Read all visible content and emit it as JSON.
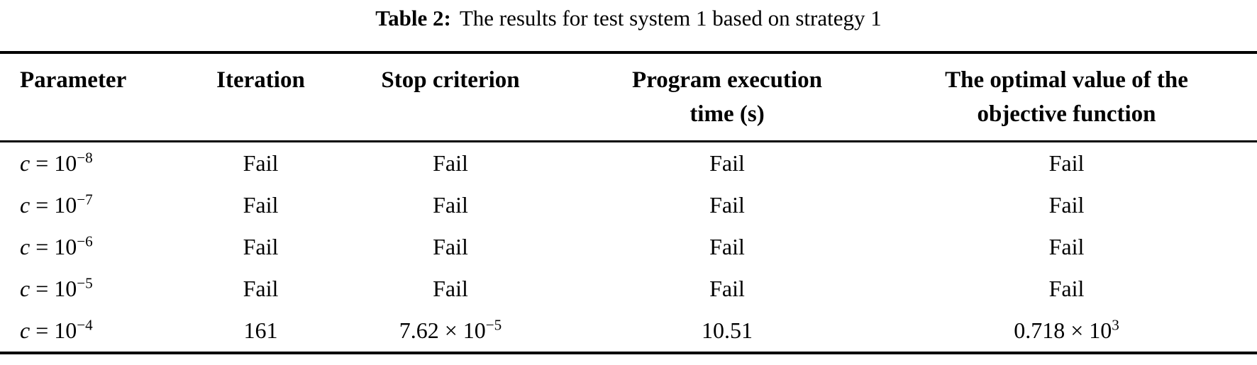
{
  "caption": {
    "label": "Table 2:",
    "text": "The results for test system 1 based on strategy 1"
  },
  "table": {
    "headers": [
      {
        "line1": "Parameter",
        "line2": ""
      },
      {
        "line1": "Iteration",
        "line2": ""
      },
      {
        "line1": "Stop criterion",
        "line2": ""
      },
      {
        "line1": "Program execution",
        "line2": "time (s)"
      },
      {
        "line1": "The optimal value of the",
        "line2": "objective function"
      }
    ],
    "rows": [
      {
        "cells": [
          {
            "var": "c",
            "base": " = 10",
            "exp": "−8"
          },
          {
            "var": "",
            "base": "Fail",
            "exp": ""
          },
          {
            "var": "",
            "base": "Fail",
            "exp": ""
          },
          {
            "var": "",
            "base": "Fail",
            "exp": ""
          },
          {
            "var": "",
            "base": "Fail",
            "exp": ""
          }
        ]
      },
      {
        "cells": [
          {
            "var": "c",
            "base": " = 10",
            "exp": "−7"
          },
          {
            "var": "",
            "base": "Fail",
            "exp": ""
          },
          {
            "var": "",
            "base": "Fail",
            "exp": ""
          },
          {
            "var": "",
            "base": "Fail",
            "exp": ""
          },
          {
            "var": "",
            "base": "Fail",
            "exp": ""
          }
        ]
      },
      {
        "cells": [
          {
            "var": "c",
            "base": " = 10",
            "exp": "−6"
          },
          {
            "var": "",
            "base": "Fail",
            "exp": ""
          },
          {
            "var": "",
            "base": "Fail",
            "exp": ""
          },
          {
            "var": "",
            "base": "Fail",
            "exp": ""
          },
          {
            "var": "",
            "base": "Fail",
            "exp": ""
          }
        ]
      },
      {
        "cells": [
          {
            "var": "c",
            "base": " = 10",
            "exp": "−5"
          },
          {
            "var": "",
            "base": "Fail",
            "exp": ""
          },
          {
            "var": "",
            "base": "Fail",
            "exp": ""
          },
          {
            "var": "",
            "base": "Fail",
            "exp": ""
          },
          {
            "var": "",
            "base": "Fail",
            "exp": ""
          }
        ]
      },
      {
        "cells": [
          {
            "var": "c",
            "base": " = 10",
            "exp": "−4"
          },
          {
            "var": "",
            "base": "161",
            "exp": ""
          },
          {
            "var": "",
            "base": "7.62 × 10",
            "exp": "−5"
          },
          {
            "var": "",
            "base": "10.51",
            "exp": ""
          },
          {
            "var": "",
            "base": "0.718 × 10",
            "exp": "3"
          }
        ]
      }
    ]
  },
  "colors": {
    "text": "#000000",
    "background": "#ffffff",
    "rule": "#000000"
  }
}
